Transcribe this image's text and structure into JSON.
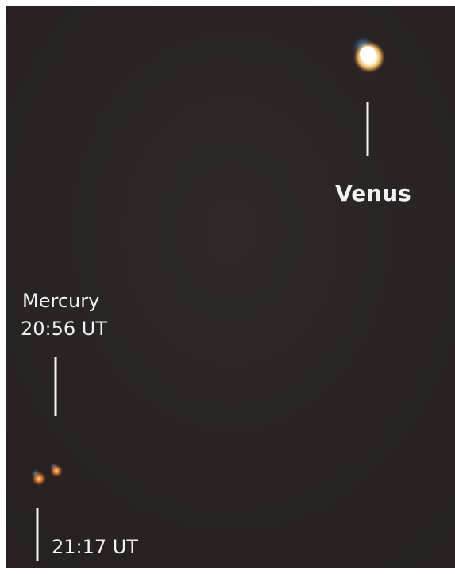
{
  "planets": {
    "venus": {
      "label": "Venus"
    },
    "mercury": {
      "label": "Mercury",
      "time_first": "20:56 UT",
      "time_second": "21:17 UT"
    }
  }
}
